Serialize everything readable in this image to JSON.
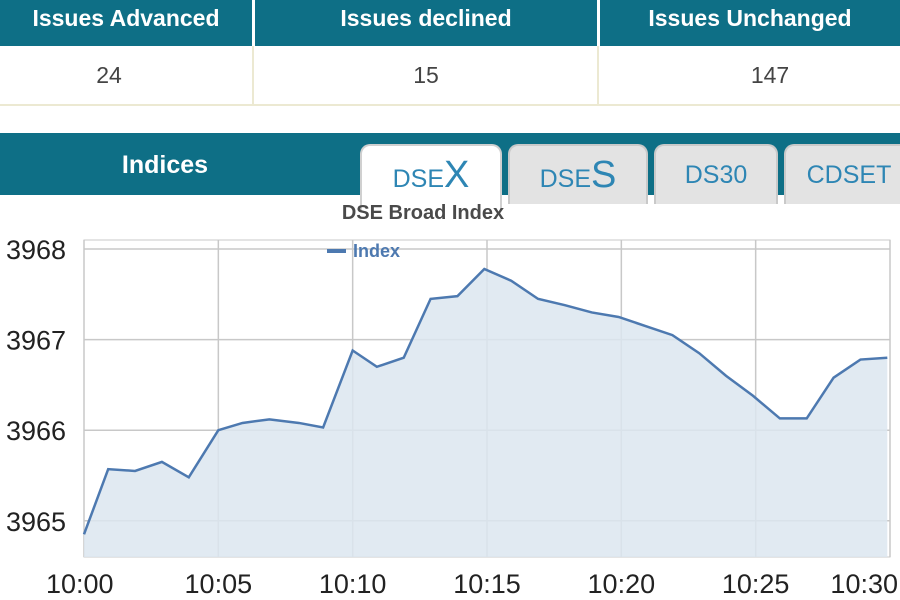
{
  "summary": {
    "headers": [
      "Issues Advanced",
      "Issues declined",
      "Issues Unchanged"
    ],
    "values": [
      "24",
      "15",
      "147"
    ]
  },
  "indices": {
    "title": "Indices",
    "tabs": [
      {
        "prefix": "DSE",
        "suffix": "X",
        "active": true
      },
      {
        "prefix": "DSE",
        "suffix": "S",
        "active": false
      },
      {
        "prefix": "DS30",
        "suffix": "",
        "active": false
      },
      {
        "prefix": "CDSET",
        "suffix": "",
        "active": false
      }
    ]
  },
  "colors": {
    "header_bg": "#0e6f86",
    "tab_text": "#2e86b4",
    "line": "#4d79b0",
    "area": "#dce6f0"
  },
  "chart_data": {
    "type": "area",
    "title": "DSE Broad Index",
    "legend": "Index",
    "legend_position": "top-left",
    "grid": true,
    "ylim": [
      3964.6,
      3968.1
    ],
    "yticks": [
      3965,
      3966,
      3967,
      3968
    ],
    "xticks": [
      "10:00",
      "10:05",
      "10:10",
      "10:15",
      "10:20",
      "10:25",
      "10:30"
    ],
    "xrange_minutes": [
      0,
      30
    ],
    "series": [
      {
        "name": "Index",
        "x": [
          0,
          0.9,
          1.9,
          2.9,
          3.9,
          5.0,
          5.9,
          6.9,
          8.0,
          8.9,
          10.0,
          10.9,
          11.9,
          12.9,
          13.9,
          14.9,
          15.9,
          16.9,
          17.9,
          18.9,
          19.9,
          20.9,
          21.9,
          22.9,
          23.9,
          24.9,
          25.9,
          26.9,
          27.9,
          28.9,
          29.9
        ],
        "values": [
          3964.85,
          3965.57,
          3965.55,
          3965.65,
          3965.48,
          3966.0,
          3966.08,
          3966.12,
          3966.08,
          3966.03,
          3966.88,
          3966.7,
          3966.8,
          3967.45,
          3967.48,
          3967.78,
          3967.65,
          3967.45,
          3967.38,
          3967.3,
          3967.25,
          3967.15,
          3967.05,
          3966.85,
          3966.6,
          3966.38,
          3966.13,
          3966.13,
          3966.58,
          3966.78,
          3966.8
        ]
      }
    ]
  }
}
